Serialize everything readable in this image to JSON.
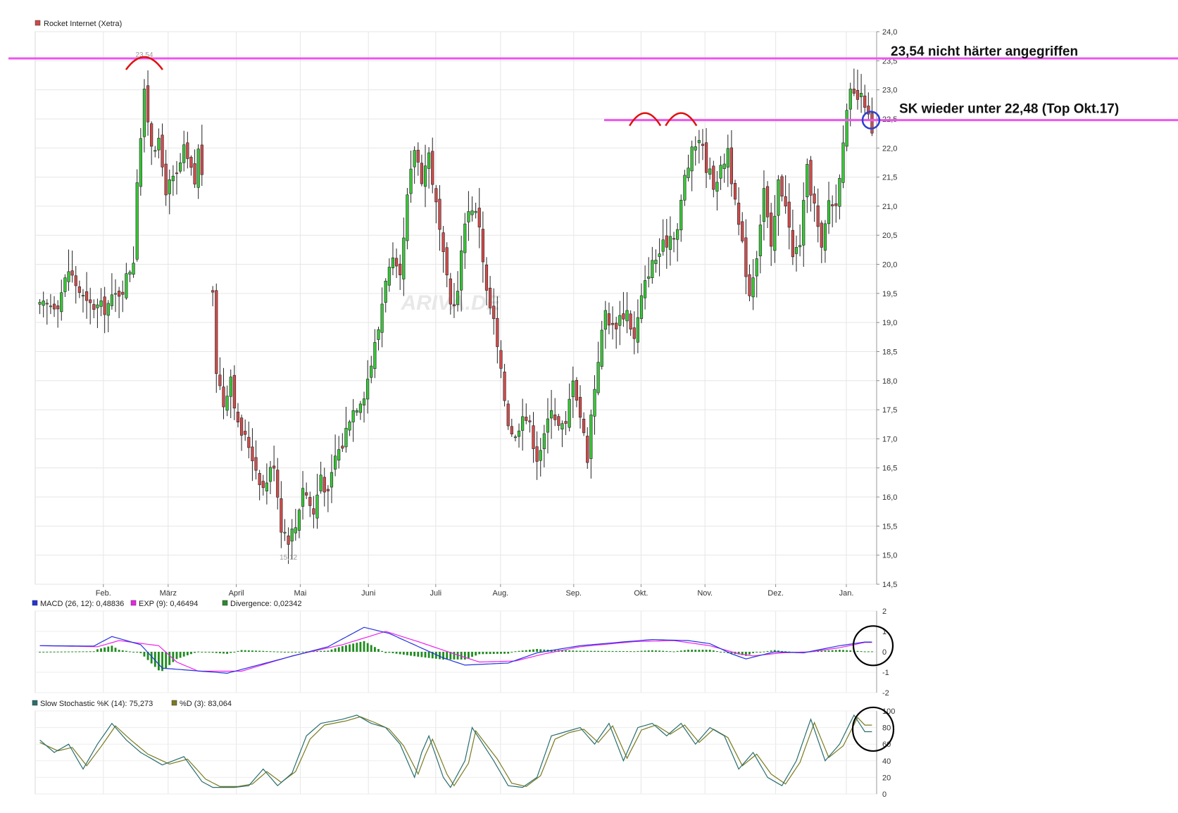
{
  "chart_data": {
    "type": "candlestick",
    "x_axis": {
      "months": [
        "Feb.",
        "März",
        "April",
        "Mai",
        "Juni",
        "Juli",
        "Aug.",
        "Sep.",
        "Okt.",
        "Nov.",
        "Dez.",
        "Jan."
      ]
    },
    "price_panel": {
      "legend": "Rocket Internet (Xetra)",
      "legend_color": "#d04848",
      "ylim": [
        14.5,
        24.0
      ],
      "yticks": [
        "24,0",
        "23,5",
        "23,0",
        "22,5",
        "22,0",
        "21,5",
        "21,0",
        "20,5",
        "20,0",
        "19,5",
        "19,0",
        "18,5",
        "18,0",
        "17,5",
        "17,0",
        "16,5",
        "16,0",
        "15,5",
        "15,0",
        "14,5"
      ],
      "high_label": "23,54",
      "low_label": "15,12",
      "watermark": "ARIVA.DE",
      "up_color": "#37c837",
      "down_color": "#d24b4b",
      "close_path": [
        [
          0,
          19.25
        ],
        [
          5,
          19.35
        ],
        [
          8,
          19.9
        ],
        [
          13,
          19.3
        ],
        [
          18,
          19.25
        ],
        [
          23,
          19.6
        ],
        [
          26,
          20.1
        ],
        [
          27,
          21.5
        ],
        [
          29,
          22.9
        ],
        [
          31,
          22.1
        ],
        [
          33,
          22.05
        ],
        [
          35,
          21.3
        ],
        [
          38,
          21.5
        ],
        [
          40,
          21.95
        ],
        [
          43,
          21.4
        ],
        [
          44,
          21.95
        ],
        [
          45,
          21.6
        ],
        [
          48,
          19.4
        ],
        [
          49,
          18.2
        ],
        [
          51,
          17.6
        ],
        [
          53,
          18.1
        ],
        [
          55,
          17.2
        ],
        [
          58,
          16.9
        ],
        [
          60,
          16.5
        ],
        [
          62,
          16.15
        ],
        [
          65,
          16.6
        ],
        [
          67,
          15.5
        ],
        [
          69,
          15.3
        ],
        [
          71,
          15.5
        ],
        [
          73,
          16.2
        ],
        [
          76,
          15.7
        ],
        [
          78,
          16.4
        ],
        [
          80,
          16.0
        ],
        [
          82,
          16.7
        ],
        [
          84,
          16.9
        ],
        [
          86,
          17.4
        ],
        [
          88,
          17.6
        ],
        [
          90,
          17.8
        ],
        [
          92,
          18.3
        ],
        [
          94,
          18.9
        ],
        [
          96,
          19.8
        ],
        [
          98,
          20.0
        ],
        [
          100,
          19.7
        ],
        [
          102,
          21.1
        ],
        [
          104,
          22.0
        ],
        [
          106,
          21.5
        ],
        [
          108,
          21.9
        ],
        [
          110,
          21.0
        ],
        [
          112,
          20.1
        ],
        [
          114,
          19.3
        ],
        [
          116,
          19.5
        ],
        [
          118,
          20.8
        ],
        [
          120,
          21.0
        ],
        [
          122,
          20.7
        ],
        [
          124,
          19.5
        ],
        [
          126,
          19.0
        ],
        [
          128,
          18.1
        ],
        [
          130,
          17.3
        ],
        [
          132,
          17.0
        ],
        [
          134,
          17.5
        ],
        [
          136,
          17.2
        ],
        [
          138,
          16.7
        ],
        [
          140,
          17.0
        ],
        [
          142,
          17.6
        ],
        [
          144,
          17.2
        ],
        [
          146,
          17.2
        ],
        [
          148,
          18.1
        ],
        [
          150,
          17.4
        ],
        [
          152,
          16.7
        ],
        [
          153,
          17.4
        ],
        [
          155,
          18.4
        ],
        [
          157,
          19.2
        ],
        [
          159,
          18.9
        ],
        [
          161,
          19.1
        ],
        [
          163,
          19.2
        ],
        [
          165,
          18.7
        ],
        [
          167,
          19.4
        ],
        [
          169,
          19.9
        ],
        [
          171,
          20.1
        ],
        [
          173,
          20.3
        ],
        [
          175,
          20.5
        ],
        [
          177,
          20.6
        ],
        [
          179,
          21.5
        ],
        [
          181,
          21.9
        ],
        [
          183,
          22.2
        ],
        [
          185,
          21.7
        ],
        [
          187,
          21.4
        ],
        [
          189,
          21.6
        ],
        [
          191,
          22.0
        ],
        [
          193,
          21.0
        ],
        [
          195,
          20.3
        ],
        [
          197,
          19.5
        ],
        [
          199,
          20.2
        ],
        [
          201,
          21.3
        ],
        [
          203,
          20.2
        ],
        [
          205,
          21.4
        ],
        [
          207,
          21.1
        ],
        [
          209,
          20.1
        ],
        [
          211,
          20.4
        ],
        [
          213,
          21.6
        ],
        [
          215,
          21.0
        ],
        [
          217,
          20.2
        ],
        [
          219,
          21.1
        ],
        [
          221,
          21.0
        ],
        [
          223,
          22.2
        ],
        [
          225,
          22.9
        ],
        [
          227,
          22.85
        ],
        [
          229,
          22.8
        ],
        [
          230,
          22.5
        ],
        [
          231,
          22.2
        ]
      ]
    },
    "macd_panel": {
      "legend": [
        {
          "label": "MACD (26, 12): 0,48836",
          "color": "#2233dd"
        },
        {
          "label": "EXP (9): 0,46494",
          "color": "#ee22ee"
        },
        {
          "label": "Divergence: 0,02342",
          "color": "#2a8a2a"
        }
      ],
      "ylim": [
        -2,
        2
      ],
      "yticks": [
        "2",
        "1",
        "0",
        "-1",
        "-2"
      ],
      "macd_path": [
        [
          0,
          0.3
        ],
        [
          15,
          0.28
        ],
        [
          20,
          0.75
        ],
        [
          28,
          0.35
        ],
        [
          34,
          -0.8
        ],
        [
          52,
          -1.05
        ],
        [
          66,
          -0.4
        ],
        [
          80,
          0.25
        ],
        [
          90,
          1.2
        ],
        [
          97,
          0.9
        ],
        [
          112,
          -0.3
        ],
        [
          118,
          -0.65
        ],
        [
          130,
          -0.55
        ],
        [
          138,
          -0.05
        ],
        [
          150,
          0.3
        ],
        [
          163,
          0.5
        ],
        [
          170,
          0.6
        ],
        [
          180,
          0.55
        ],
        [
          186,
          0.4
        ],
        [
          192,
          -0.1
        ],
        [
          196,
          -0.35
        ],
        [
          204,
          0.0
        ],
        [
          212,
          -0.05
        ],
        [
          222,
          0.3
        ],
        [
          229,
          0.48
        ]
      ],
      "signal_path": [
        [
          0,
          0.3
        ],
        [
          16,
          0.25
        ],
        [
          22,
          0.55
        ],
        [
          33,
          0.3
        ],
        [
          38,
          -0.5
        ],
        [
          44,
          -0.95
        ],
        [
          56,
          -0.95
        ],
        [
          70,
          -0.2
        ],
        [
          84,
          0.35
        ],
        [
          96,
          1.0
        ],
        [
          105,
          0.5
        ],
        [
          115,
          -0.1
        ],
        [
          122,
          -0.5
        ],
        [
          132,
          -0.45
        ],
        [
          140,
          -0.1
        ],
        [
          150,
          0.25
        ],
        [
          165,
          0.5
        ],
        [
          176,
          0.55
        ],
        [
          186,
          0.3
        ],
        [
          194,
          -0.1
        ],
        [
          198,
          -0.2
        ],
        [
          206,
          -0.05
        ],
        [
          214,
          0.0
        ],
        [
          222,
          0.2
        ],
        [
          229,
          0.46
        ]
      ]
    },
    "stoch_panel": {
      "legend": [
        {
          "label": "Slow Stochastic %K (14): 75,273",
          "color": "#2a6e6e"
        },
        {
          "label": "%D (3): 83,064",
          "color": "#7a7a20"
        }
      ],
      "ylim": [
        0,
        100
      ],
      "yticks": [
        "100",
        "80",
        "60",
        "40",
        "20",
        "0"
      ],
      "k_path": [
        [
          0,
          65
        ],
        [
          4,
          50
        ],
        [
          8,
          60
        ],
        [
          12,
          30
        ],
        [
          16,
          60
        ],
        [
          20,
          85
        ],
        [
          24,
          65
        ],
        [
          28,
          50
        ],
        [
          34,
          35
        ],
        [
          40,
          45
        ],
        [
          45,
          15
        ],
        [
          48,
          8
        ],
        [
          54,
          8
        ],
        [
          58,
          10
        ],
        [
          62,
          30
        ],
        [
          66,
          10
        ],
        [
          70,
          25
        ],
        [
          74,
          70
        ],
        [
          78,
          85
        ],
        [
          84,
          90
        ],
        [
          88,
          95
        ],
        [
          92,
          85
        ],
        [
          96,
          80
        ],
        [
          100,
          60
        ],
        [
          104,
          20
        ],
        [
          106,
          50
        ],
        [
          108,
          70
        ],
        [
          112,
          20
        ],
        [
          114,
          8
        ],
        [
          118,
          40
        ],
        [
          120,
          80
        ],
        [
          126,
          40
        ],
        [
          130,
          10
        ],
        [
          134,
          8
        ],
        [
          138,
          20
        ],
        [
          142,
          70
        ],
        [
          146,
          75
        ],
        [
          150,
          80
        ],
        [
          154,
          60
        ],
        [
          158,
          85
        ],
        [
          162,
          40
        ],
        [
          166,
          80
        ],
        [
          170,
          85
        ],
        [
          174,
          70
        ],
        [
          178,
          85
        ],
        [
          182,
          60
        ],
        [
          186,
          80
        ],
        [
          190,
          70
        ],
        [
          194,
          30
        ],
        [
          198,
          50
        ],
        [
          202,
          20
        ],
        [
          206,
          10
        ],
        [
          210,
          40
        ],
        [
          214,
          90
        ],
        [
          218,
          40
        ],
        [
          222,
          60
        ],
        [
          226,
          95
        ],
        [
          229,
          75
        ]
      ],
      "d_path": [
        [
          0,
          62
        ],
        [
          5,
          52
        ],
        [
          9,
          56
        ],
        [
          13,
          34
        ],
        [
          17,
          57
        ],
        [
          21,
          82
        ],
        [
          25,
          66
        ],
        [
          30,
          48
        ],
        [
          36,
          36
        ],
        [
          41,
          42
        ],
        [
          46,
          18
        ],
        [
          50,
          9
        ],
        [
          55,
          9
        ],
        [
          59,
          12
        ],
        [
          63,
          27
        ],
        [
          67,
          14
        ],
        [
          71,
          27
        ],
        [
          75,
          66
        ],
        [
          79,
          83
        ],
        [
          85,
          88
        ],
        [
          89,
          93
        ],
        [
          93,
          86
        ],
        [
          97,
          78
        ],
        [
          101,
          58
        ],
        [
          105,
          24
        ],
        [
          107,
          47
        ],
        [
          109,
          66
        ],
        [
          113,
          24
        ],
        [
          115,
          10
        ],
        [
          119,
          37
        ],
        [
          121,
          76
        ],
        [
          127,
          42
        ],
        [
          131,
          13
        ],
        [
          135,
          9
        ],
        [
          139,
          22
        ],
        [
          143,
          66
        ],
        [
          147,
          74
        ],
        [
          151,
          78
        ],
        [
          155,
          62
        ],
        [
          159,
          82
        ],
        [
          163,
          43
        ],
        [
          167,
          77
        ],
        [
          171,
          83
        ],
        [
          175,
          72
        ],
        [
          179,
          83
        ],
        [
          183,
          62
        ],
        [
          187,
          78
        ],
        [
          191,
          68
        ],
        [
          195,
          34
        ],
        [
          199,
          48
        ],
        [
          203,
          24
        ],
        [
          207,
          12
        ],
        [
          211,
          38
        ],
        [
          215,
          86
        ],
        [
          219,
          44
        ],
        [
          223,
          58
        ],
        [
          227,
          92
        ],
        [
          229,
          83
        ]
      ]
    },
    "annotations": [
      {
        "text": "23,54 nicht härter angegriffen",
        "level": 23.54,
        "color": "#ee55ee"
      },
      {
        "text": "SK wieder unter 22,48 (Top Okt.17)",
        "level": 22.48,
        "color": "#ee55ee"
      }
    ]
  }
}
